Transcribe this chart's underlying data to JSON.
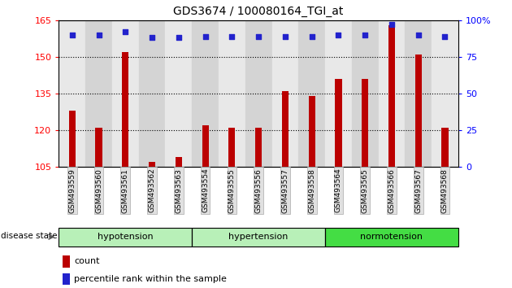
{
  "title": "GDS3674 / 100080164_TGI_at",
  "samples": [
    "GSM493559",
    "GSM493560",
    "GSM493561",
    "GSM493562",
    "GSM493563",
    "GSM493554",
    "GSM493555",
    "GSM493556",
    "GSM493557",
    "GSM493558",
    "GSM493564",
    "GSM493565",
    "GSM493566",
    "GSM493567",
    "GSM493568"
  ],
  "bar_values": [
    128,
    121,
    152,
    107,
    109,
    122,
    121,
    121,
    136,
    134,
    141,
    141,
    163,
    151,
    121
  ],
  "percentile_values": [
    90,
    90,
    92,
    88,
    88,
    89,
    89,
    89,
    89,
    89,
    90,
    90,
    97,
    90,
    89
  ],
  "groups": [
    {
      "label": "hypotension",
      "start": 0,
      "end": 5
    },
    {
      "label": "hypertension",
      "start": 5,
      "end": 10
    },
    {
      "label": "normotension",
      "start": 10,
      "end": 15
    }
  ],
  "group_colors": [
    "#b8f0b8",
    "#b8f0b8",
    "#44dd44"
  ],
  "ylim_left": [
    105,
    165
  ],
  "ylim_right": [
    0,
    100
  ],
  "yticks_left": [
    105,
    120,
    135,
    150,
    165
  ],
  "yticks_right": [
    0,
    25,
    50,
    75,
    100
  ],
  "bar_color": "#BB0000",
  "dot_color": "#2222CC",
  "label_count": "count",
  "label_percentile": "percentile rank within the sample",
  "disease_state_label": "disease state",
  "col_bg_even": "#e8e8e8",
  "col_bg_odd": "#d4d4d4",
  "figsize": [
    6.3,
    3.54
  ],
  "dpi": 100
}
